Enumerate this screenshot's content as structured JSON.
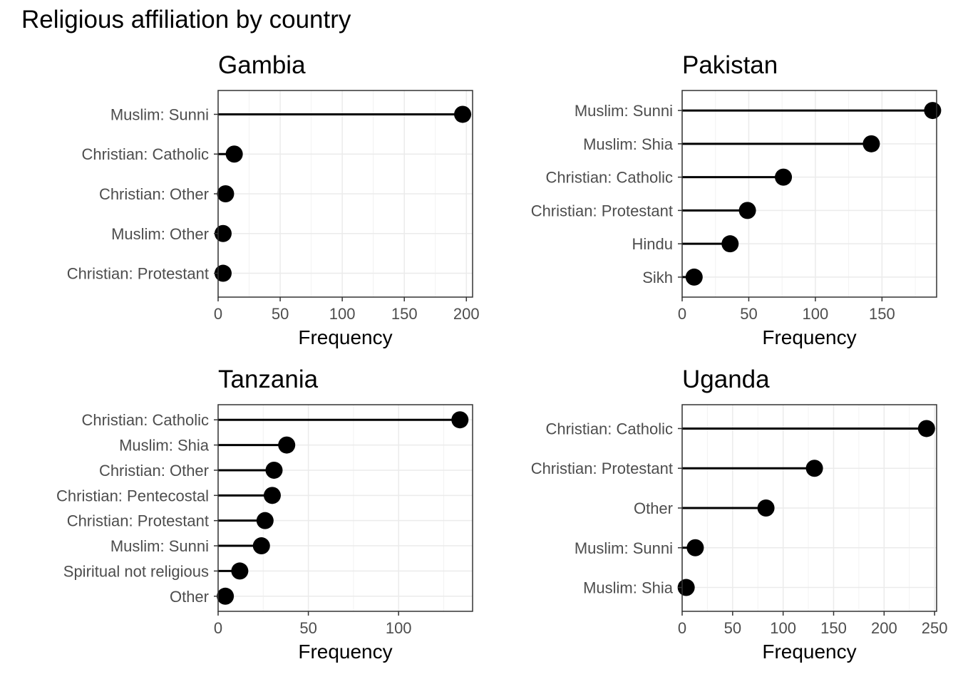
{
  "title": "Religious affiliation by country",
  "chart_data": [
    {
      "type": "lollipop",
      "title": "Gambia",
      "xlabel": "Frequency",
      "ylabel": "",
      "xlim": [
        0,
        205
      ],
      "xticks": [
        0,
        50,
        100,
        150,
        200
      ],
      "grid": true,
      "categories": [
        "Muslim: Sunni",
        "Christian: Catholic",
        "Christian: Other",
        "Muslim: Other",
        "Christian: Protestant"
      ],
      "values": [
        197,
        13,
        6,
        4,
        4
      ]
    },
    {
      "type": "lollipop",
      "title": "Pakistan",
      "xlabel": "Frequency",
      "ylabel": "",
      "xlim": [
        0,
        191
      ],
      "xticks": [
        0,
        50,
        100,
        150
      ],
      "grid": true,
      "categories": [
        "Muslim: Sunni",
        "Muslim: Shia",
        "Christian: Catholic",
        "Christian: Protestant",
        "Hindu",
        "Sikh"
      ],
      "values": [
        188,
        142,
        76,
        49,
        36,
        9
      ]
    },
    {
      "type": "lollipop",
      "title": "Tanzania",
      "xlabel": "Frequency",
      "ylabel": "",
      "xlim": [
        0,
        141
      ],
      "xticks": [
        0,
        50,
        100
      ],
      "grid": true,
      "categories": [
        "Christian: Catholic",
        "Muslim: Shia",
        "Christian: Other",
        "Christian: Pentecostal",
        "Christian: Protestant",
        "Muslim: Sunni",
        "Spiritual not religious",
        "Other"
      ],
      "values": [
        134,
        38,
        31,
        30,
        26,
        24,
        12,
        4
      ]
    },
    {
      "type": "lollipop",
      "title": "Uganda",
      "xlabel": "Frequency",
      "ylabel": "",
      "xlim": [
        0,
        252
      ],
      "xticks": [
        0,
        50,
        100,
        150,
        200,
        250
      ],
      "grid": true,
      "categories": [
        "Christian: Catholic",
        "Christian: Protestant",
        "Other",
        "Muslim: Sunni",
        "Muslim: Shia"
      ],
      "values": [
        242,
        131,
        83,
        13,
        4
      ]
    }
  ]
}
